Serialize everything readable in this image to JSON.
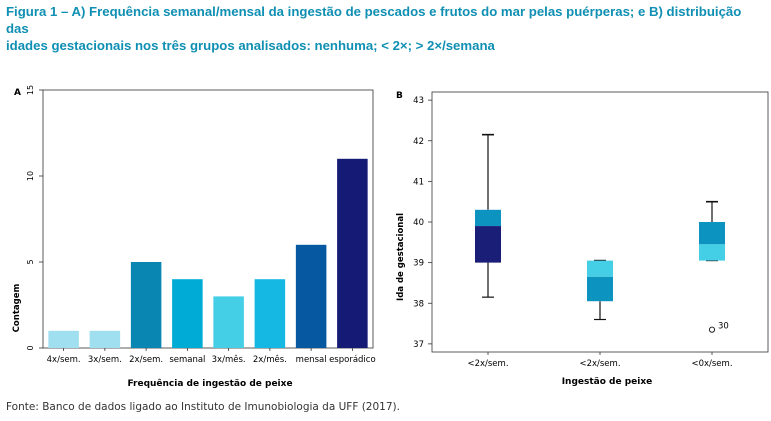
{
  "title_line1": "Figura 1 – A) Frequência semanal/mensal da ingestão de pescados e frutos do mar pelas puérperas; e B) distribuição das",
  "title_line2": "idades gestacionais nos três grupos analisados: nenhuma; < 2×; > 2×/semana",
  "source": "Fonte: Banco de dados ligado ao Instituto de Imunobiologia da UFF (2017).",
  "colors": {
    "title": "#0f8fb3",
    "bars": [
      "#9fdff0",
      "#9fdff0",
      "#0a86b2",
      "#00acd6",
      "#44cfe6",
      "#15b8e2",
      "#0659a0",
      "#151a75"
    ],
    "box_upper": "#0d93c0",
    "box_lower": "#1a1e77",
    "box_light": "#44cfe6"
  },
  "chart_data": [
    {
      "type": "bar",
      "panel_label": "A",
      "categories": [
        "4x/sem.",
        "3x/sem.",
        "2x/sem.",
        "semanal",
        "3x/mês.",
        "2x/mês.",
        "mensal",
        "esporádico"
      ],
      "values": [
        1,
        1,
        5,
        4,
        3,
        4,
        6,
        11
      ],
      "xlabel": "Frequência de ingestão de peixe",
      "ylabel": "Contagem",
      "ylim": [
        0,
        15
      ],
      "yticks": [
        "0",
        "5",
        "10",
        "15"
      ],
      "grid": false
    },
    {
      "type": "box",
      "panel_label": "B",
      "categories": [
        "<2x/sem.",
        "<2x/sem.",
        "<0x/sem."
      ],
      "boxes": [
        {
          "whisker_low": 38.15,
          "q1": 39.0,
          "median": 39.9,
          "q3": 40.3,
          "whisker_high": 42.15
        },
        {
          "whisker_low": 37.6,
          "q1": 38.05,
          "median": 38.65,
          "q3": 39.05,
          "whisker_high": 39.05
        },
        {
          "whisker_low": 39.05,
          "q1": 39.05,
          "median": 39.45,
          "q3": 40.0,
          "whisker_high": 40.5
        }
      ],
      "outliers": [
        {
          "group": 2,
          "value": 37.35,
          "label": "30"
        }
      ],
      "xlabel": "Ingestão de peixe",
      "ylabel": "Ida de gestacional",
      "ylim": [
        36.8,
        43.2
      ],
      "yticks": [
        37,
        38,
        39,
        40,
        41,
        42,
        43
      ],
      "grid": false
    }
  ]
}
